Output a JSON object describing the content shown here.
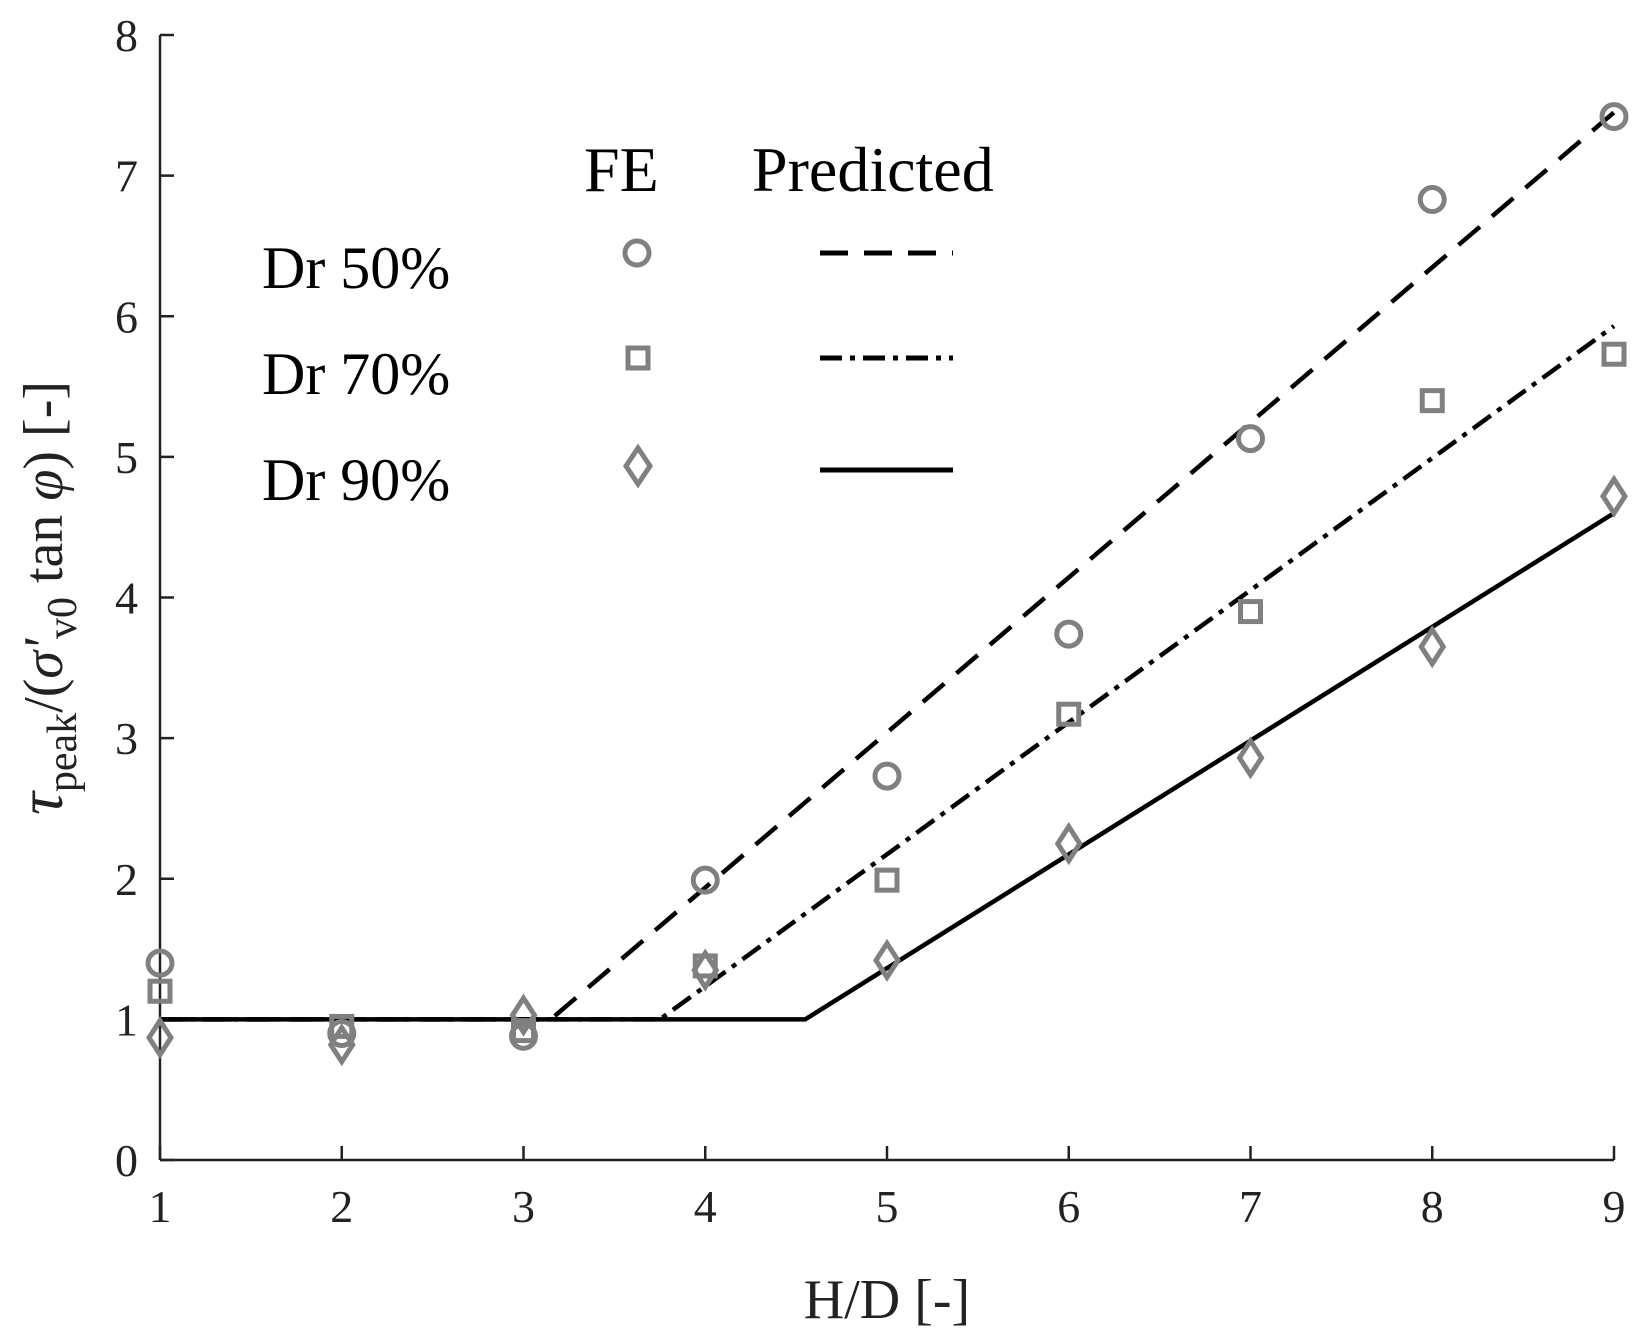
{
  "chart_data": {
    "type": "scatter",
    "title": "",
    "xlabel": "H/D [-]",
    "ylabel": {
      "tau": "τ",
      "sub_peak": "peak",
      "open": "/(",
      "sigma": "σ'",
      "sub_v0": "v0",
      "tan": " tan ",
      "phi": "φ",
      "close": ") [-]"
    },
    "xlim": [
      1,
      9
    ],
    "ylim": [
      0,
      8
    ],
    "xticks": [
      "1",
      "2",
      "3",
      "4",
      "5",
      "6",
      "7",
      "8",
      "9"
    ],
    "yticks": [
      "0",
      "1",
      "2",
      "3",
      "4",
      "5",
      "6",
      "7",
      "8"
    ],
    "grid": false,
    "legend": {
      "placement": "top-left",
      "col_fe": "FE",
      "col_pred": "Predicted",
      "entries": [
        "Dr 50%",
        "Dr 70%",
        "Dr 90%"
      ]
    },
    "colors": {
      "fe_marker": "#808080",
      "predicted_line": "#000000",
      "axis": "#222222"
    },
    "fe_series": [
      {
        "name": "Dr 50%",
        "marker": "circle",
        "x": [
          1,
          2,
          3,
          4,
          5,
          6,
          7,
          8,
          9
        ],
        "y": [
          1.4,
          0.9,
          0.88,
          1.99,
          2.73,
          3.74,
          5.13,
          6.83,
          7.42
        ]
      },
      {
        "name": "Dr 70%",
        "marker": "square",
        "x": [
          1,
          2,
          3,
          4,
          5,
          6,
          7,
          8,
          9
        ],
        "y": [
          1.2,
          0.95,
          0.92,
          1.38,
          1.99,
          3.17,
          3.9,
          5.4,
          5.73
        ]
      },
      {
        "name": "Dr 90%",
        "marker": "diamond",
        "x": [
          1,
          2,
          3,
          4,
          5,
          6,
          7,
          8,
          9
        ],
        "y": [
          0.87,
          0.82,
          1.03,
          1.35,
          1.42,
          2.25,
          2.86,
          3.65,
          4.72
        ]
      }
    ],
    "predicted_series": [
      {
        "name": "Dr 50%",
        "dash": "dashed",
        "x": [
          1,
          3.15,
          9
        ],
        "y": [
          1,
          1,
          7.45
        ]
      },
      {
        "name": "Dr 70%",
        "dash": "dash-dot",
        "x": [
          1,
          3.75,
          9
        ],
        "y": [
          1,
          1,
          5.93
        ]
      },
      {
        "name": "Dr 90%",
        "dash": "solid",
        "x": [
          1,
          4.55,
          9
        ],
        "y": [
          1,
          1,
          4.6
        ]
      }
    ]
  }
}
